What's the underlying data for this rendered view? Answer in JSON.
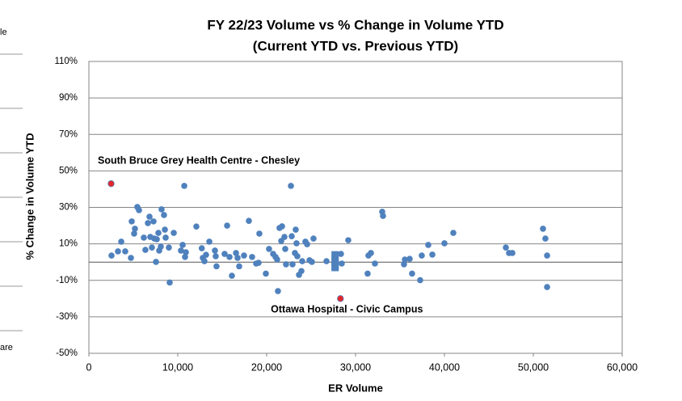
{
  "fragments": [
    "le",
    "are"
  ],
  "chart_data": {
    "type": "scatter",
    "title": [
      "FY 22/23 Volume vs % Change in Volume YTD",
      "(Current YTD vs. Previous YTD)"
    ],
    "x_label": "ER Volume",
    "y_label": "% Change in Volume YTD",
    "xlim": [
      0,
      60000
    ],
    "xticks": [
      0,
      {
        "value": 10000,
        "label": "10,000"
      },
      {
        "value": 20000,
        "label": "20,000"
      },
      {
        "value": 30000,
        "label": "30,000"
      },
      {
        "value": 40000,
        "label": "40,000"
      },
      {
        "value": 50000,
        "label": "50,000"
      },
      {
        "value": 60000,
        "label": "60,000"
      }
    ],
    "ylim": [
      -50,
      110
    ],
    "yticks": [
      {
        "value": -50,
        "label": "-50%"
      },
      {
        "value": -30,
        "label": "-30%"
      },
      {
        "value": -10,
        "label": "-10%"
      },
      {
        "value": 10,
        "label": "10%"
      },
      {
        "value": 30,
        "label": "30%"
      },
      {
        "value": 50,
        "label": "50%"
      },
      {
        "value": 70,
        "label": "70%"
      },
      {
        "value": 90,
        "label": "90%"
      },
      {
        "value": 110,
        "label": "110%"
      }
    ],
    "grid": true,
    "series": [
      {
        "color": "#4f81bd",
        "marker": "circle",
        "x": [
          2545,
          3270,
          3640,
          4090,
          4730,
          4820,
          5180,
          5090,
          5450,
          5640,
          6180,
          6360,
          6640,
          6820,
          6910,
          7090,
          7270,
          7360,
          7550,
          7640,
          7820,
          7910,
          8090,
          8180,
          8450,
          8550,
          8640,
          9000,
          9090,
          9550,
          10360,
          10730,
          10550,
          10910,
          10820,
          12090,
          12700,
          12820,
          13000,
          13180,
          13550,
          14180,
          14360,
          14270,
          15270,
          15550,
          15820,
          16090,
          16550,
          16730,
          16910,
          17450,
          18000,
          18360,
          18820,
          19090,
          19180,
          19910,
          20270,
          20730,
          21000,
          21180,
          21270,
          21450,
          21640,
          21730,
          22000,
          22090,
          22180,
          22730,
          22820,
          22910,
          23180,
          23270,
          23360,
          23450,
          23640,
          23910,
          24000,
          24360,
          24550,
          24820,
          25090,
          25270,
          26730,
          28360,
          28450,
          29180,
          31360,
          31450,
          31730,
          32180,
          33000,
          33090,
          35450,
          35550,
          36090,
          36360,
          37270,
          37450,
          38180,
          38640,
          40000,
          41000,
          46910,
          47270,
          47640,
          51090,
          51360,
          51550,
          51550
        ],
        "values": [
          3.6,
          5.9,
          11.2,
          5.9,
          2.3,
          22.3,
          18.3,
          15.6,
          30.2,
          28.5,
          13.4,
          6.7,
          21.4,
          24.9,
          13.8,
          8,
          22.3,
          12.9,
          0.1,
          12.5,
          16,
          6.3,
          8.5,
          28.9,
          25.8,
          17.8,
          13.4,
          8,
          -11.2,
          16,
          6.3,
          41.8,
          9.4,
          5.4,
          2.8,
          19.5,
          7.6,
          2.3,
          0.5,
          4,
          11.2,
          6.3,
          -2.3,
          3.2,
          4.5,
          20,
          2.8,
          -7.5,
          5,
          2.3,
          -2.3,
          3.6,
          22.6,
          2.8,
          -0.8,
          -0.4,
          15.6,
          -6.3,
          7.2,
          4.5,
          2.8,
          1.4,
          -15.9,
          18.7,
          11.6,
          19.6,
          13.8,
          7.2,
          -1.2,
          41.8,
          14.2,
          -1.2,
          5,
          17.8,
          10.3,
          3.2,
          -7,
          -4.9,
          0.5,
          11.2,
          9.8,
          1,
          0.1,
          12.9,
          0.5,
          4.5,
          -0.8,
          12,
          -6.3,
          3.6,
          5,
          -0.8,
          27.6,
          25.3,
          -1.2,
          1.4,
          1.8,
          -6.3,
          -9.9,
          3.6,
          9.4,
          4.1,
          10.3,
          16,
          8,
          5,
          5,
          18.3,
          12.9,
          3.6,
          -13.7
        ]
      },
      {
        "color": "#4f81bd",
        "marker": "square",
        "x": [
          27700,
          27700,
          27700,
          27700,
          27700
        ],
        "values": [
          4,
          2,
          0,
          -2,
          -3
        ]
      }
    ],
    "annotations": [
      {
        "text": "South Bruce Grey Health Centre - Chesley",
        "x": 2500,
        "y": 43,
        "color": "#e3262c"
      },
      {
        "text": "Ottawa Hospital - Civic Campus",
        "x": 28300,
        "y": -20,
        "color": "#e3262c"
      }
    ]
  }
}
